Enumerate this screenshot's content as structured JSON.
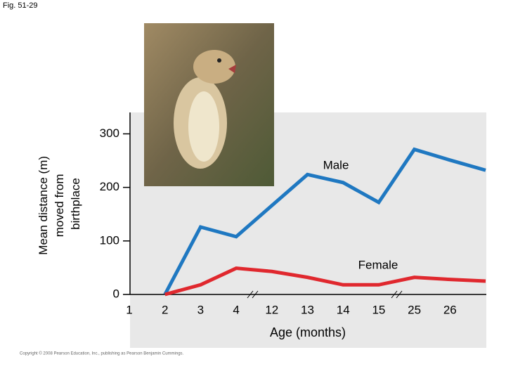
{
  "fig_label": "Fig. 51-29",
  "copyright": "Copyright © 2008 Pearson Education, Inc., publishing as Pearson Benjamin Cummings.",
  "chart_data": {
    "type": "line",
    "ylabel": [
      "Mean distance (m)",
      "moved from",
      "birthplace"
    ],
    "xlabel": "Age (months)",
    "categories": [
      "1",
      "2",
      "3",
      "4",
      "12",
      "13",
      "14",
      "15",
      "25",
      "26",
      null
    ],
    "series": [
      {
        "name": "Male",
        "color": "#1f78c1",
        "values": [
          null,
          0,
          126,
          108,
          166,
          224,
          209,
          172,
          271,
          251,
          232
        ]
      },
      {
        "name": "Female",
        "color": "#e0282e",
        "values": [
          null,
          0,
          18,
          49,
          43,
          32,
          18,
          18,
          32,
          28,
          25
        ]
      }
    ],
    "ylim": [
      0,
      340
    ],
    "yticks": [
      0,
      100,
      200,
      300
    ]
  }
}
